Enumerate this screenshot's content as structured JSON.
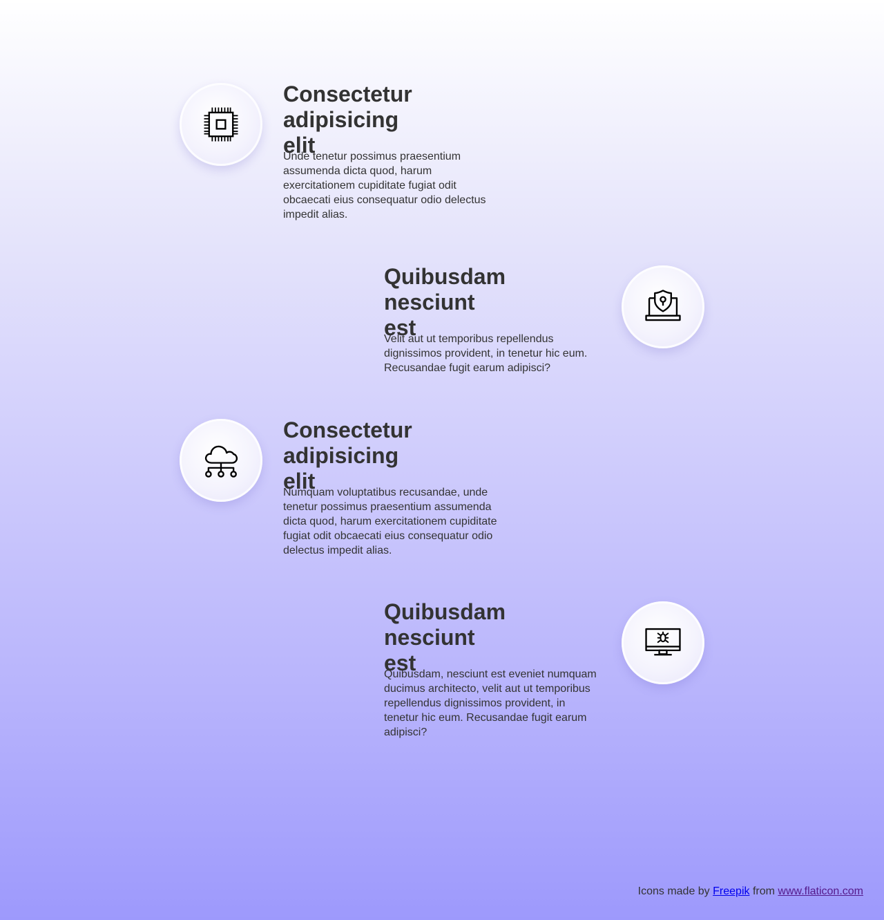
{
  "features": [
    {
      "icon": "cpu-chip-icon",
      "title_line1": "Consectetur",
      "title_line2": "adipisicing elit",
      "description": "Unde tenetur possimus praesentium assumenda dicta quod, harum exercitationem cupiditate fugiat odit obcaecati eius consequatur odio delectus impedit alias."
    },
    {
      "icon": "laptop-shield-icon",
      "title_line1": "Quibusdam",
      "title_line2": "nesciunt est",
      "description": "Velit aut ut temporibus repellendus dignissimos provident, in tenetur hic eum. Recusandae fugit earum adipisci?"
    },
    {
      "icon": "cloud-network-icon",
      "title_line1": "Consectetur",
      "title_line2": "adipisicing elit",
      "description": "Numquam voluptatibus recusandae, unde tenetur possimus praesentium assumenda dicta quod, harum exercitationem cupiditate fugiat odit obcaecati eius consequatur odio delectus impedit alias."
    },
    {
      "icon": "monitor-bug-icon",
      "title_line1": "Quibusdam",
      "title_line2": "nesciunt est",
      "description": "Quibusdam, nesciunt est eveniet numquam ducimus architecto, velit aut ut temporibus repellendus dignissimos provident, in tenetur hic eum. Recusandae fugit earum adipisci?"
    }
  ],
  "footer": {
    "prefix": "Icons made by",
    "author_link": "Freepik",
    "middle": "from",
    "site_link": "www.flaticon.com"
  }
}
